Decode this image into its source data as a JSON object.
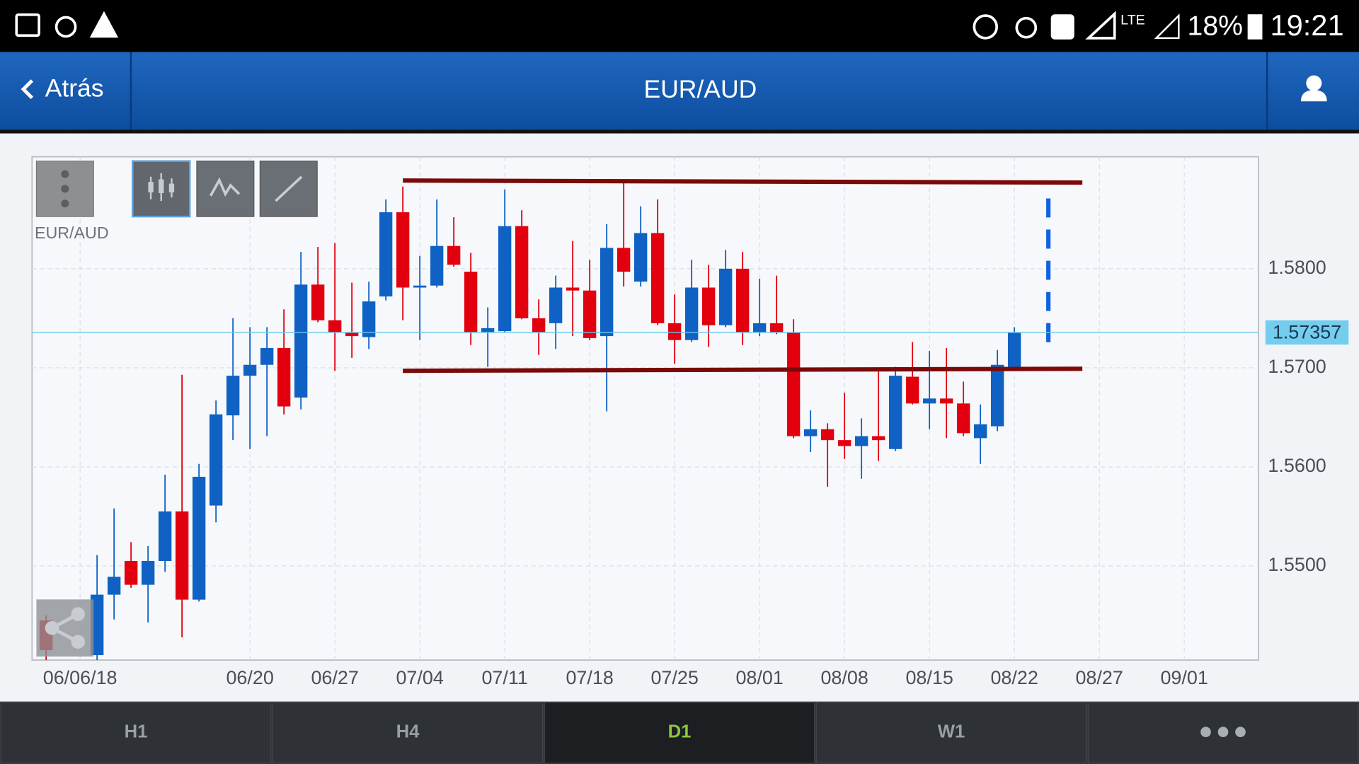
{
  "status_bar": {
    "network": "LTE",
    "battery": "18%",
    "time": "19:21"
  },
  "nav": {
    "back": "Atrás",
    "title": "EUR/AUD"
  },
  "chart_data": {
    "type": "candlestick",
    "label": "EUR/AUD",
    "categories": [
      null,
      null,
      "06/06/18",
      null,
      null,
      null,
      null,
      null,
      null,
      null,
      null,
      null,
      "06/20",
      null,
      null,
      null,
      null,
      "06/27",
      null,
      null,
      null,
      null,
      "07/04",
      null,
      null,
      null,
      null,
      "07/11",
      null,
      null,
      null,
      null,
      "07/18",
      null,
      null,
      null,
      null,
      "07/25",
      null,
      null,
      null,
      null,
      "08/01",
      null,
      null,
      null,
      null,
      "08/08",
      null,
      null,
      null,
      null,
      "08/15",
      null,
      null,
      null,
      null,
      "08/22",
      null,
      null,
      null,
      null,
      "08/27",
      null,
      null,
      null,
      null,
      "09/01",
      null,
      null,
      null,
      null
    ],
    "open": [
      1.5445,
      null,
      null,
      1.541,
      1.5471,
      1.5505,
      1.5481,
      1.5505,
      1.5555,
      1.5466,
      1.5561,
      1.5652,
      1.5692,
      1.5703,
      1.572,
      1.567,
      1.5784,
      1.5748,
      1.5736,
      1.5731,
      1.5772,
      1.5857,
      1.5781,
      1.5783,
      1.5823,
      1.5797,
      1.5736,
      1.5737,
      1.5843,
      1.575,
      1.5745,
      1.5781,
      1.5778,
      1.5732,
      1.5821,
      1.5787,
      1.5836,
      1.5745,
      1.5728,
      1.5781,
      1.5743,
      1.58,
      1.5736,
      1.5745,
      1.5736,
      1.5631,
      1.5638,
      1.5627,
      1.5621,
      1.5631,
      1.5618,
      1.5691,
      1.5664,
      1.5669,
      1.5664,
      1.5629,
      1.5641,
      1.5701,
      null,
      null,
      null,
      null,
      null,
      null,
      null,
      null,
      null,
      null,
      null,
      null,
      null,
      null
    ],
    "high": [
      1.545,
      null,
      null,
      1.5511,
      1.5558,
      1.5524,
      1.552,
      1.5592,
      1.5693,
      1.5603,
      1.5667,
      1.575,
      1.5741,
      1.5741,
      1.5759,
      1.5817,
      1.5822,
      1.5826,
      1.5786,
      1.5787,
      1.587,
      1.5883,
      1.5813,
      1.587,
      1.5852,
      1.5816,
      1.5761,
      1.588,
      1.5859,
      1.5769,
      1.5793,
      1.5828,
      1.5809,
      1.5845,
      1.589,
      1.5863,
      1.587,
      1.5774,
      1.5809,
      1.5804,
      1.5819,
      1.5817,
      1.579,
      1.5793,
      1.5749,
      1.5657,
      1.5644,
      1.5675,
      1.5649,
      1.5699,
      1.5701,
      1.5726,
      1.5717,
      1.572,
      1.5686,
      1.5663,
      1.5718,
      1.5741,
      null,
      null,
      null,
      null,
      null,
      null,
      null,
      null,
      null,
      null,
      null,
      null,
      null,
      null
    ],
    "low": [
      1.5405,
      null,
      null,
      1.5405,
      1.5446,
      1.5478,
      1.5443,
      1.5494,
      1.5428,
      1.5464,
      1.5544,
      1.5627,
      1.5618,
      1.5631,
      1.5653,
      1.5658,
      1.5746,
      1.5697,
      1.571,
      1.5719,
      1.5768,
      1.5748,
      1.5728,
      1.5781,
      1.5802,
      1.5723,
      1.5701,
      1.5736,
      1.5749,
      1.5713,
      1.5719,
      1.5732,
      1.5728,
      1.5656,
      1.5782,
      1.5782,
      1.5743,
      1.5704,
      1.5726,
      1.5721,
      1.5741,
      1.5723,
      1.5732,
      1.5734,
      1.5629,
      1.5615,
      1.558,
      1.5608,
      1.5588,
      1.5606,
      1.5616,
      1.5663,
      1.5638,
      1.5629,
      1.5631,
      1.5603,
      1.5636,
      1.5699,
      null,
      null,
      null,
      null,
      null,
      null,
      null,
      null,
      null,
      null,
      null,
      null,
      null,
      null
    ],
    "close": [
      1.5415,
      null,
      null,
      1.5471,
      1.5489,
      1.5481,
      1.5505,
      1.5555,
      1.5466,
      1.559,
      1.5653,
      1.5692,
      1.5703,
      1.572,
      1.5661,
      1.5784,
      1.5748,
      1.5736,
      1.5732,
      1.5767,
      1.5857,
      1.5781,
      1.5783,
      1.5823,
      1.5804,
      1.5736,
      1.574,
      1.5843,
      1.575,
      1.5736,
      1.5781,
      1.5778,
      1.573,
      1.5821,
      1.5797,
      1.5836,
      1.5745,
      1.5728,
      1.5781,
      1.5743,
      1.58,
      1.5736,
      1.5745,
      1.5736,
      1.5631,
      1.5638,
      1.5627,
      1.5621,
      1.5631,
      1.5627,
      1.5692,
      1.5664,
      1.5669,
      1.5664,
      1.5634,
      1.5643,
      1.5703,
      1.5736,
      null,
      null,
      null,
      null,
      null,
      null,
      null,
      null,
      null,
      null,
      null,
      null,
      null,
      null
    ],
    "up_color": "#0f62c4",
    "down_color": "#e2000f",
    "ylim": [
      1.5405,
      1.5913
    ],
    "yticks": [
      {
        "value": 1.55,
        "label": "1.5500"
      },
      {
        "value": 1.56,
        "label": "1.5600"
      },
      {
        "value": 1.57,
        "label": "1.5700"
      },
      {
        "value": 1.58,
        "label": "1.5800"
      }
    ],
    "grid": true,
    "current_price": 1.57357,
    "trendlines": [
      {
        "values": [
          1.5889,
          1.5887
        ],
        "color": "#7a0a0a"
      },
      {
        "values": [
          1.5697,
          1.5699
        ],
        "color": "#7a0a0a"
      }
    ],
    "projection": {
      "values": [
        1.5871,
        1.5719
      ],
      "color": "#0f62e0"
    }
  },
  "tabs": {
    "labels": [
      "H1",
      "H4",
      "D1",
      "W1"
    ],
    "selected": 2
  }
}
